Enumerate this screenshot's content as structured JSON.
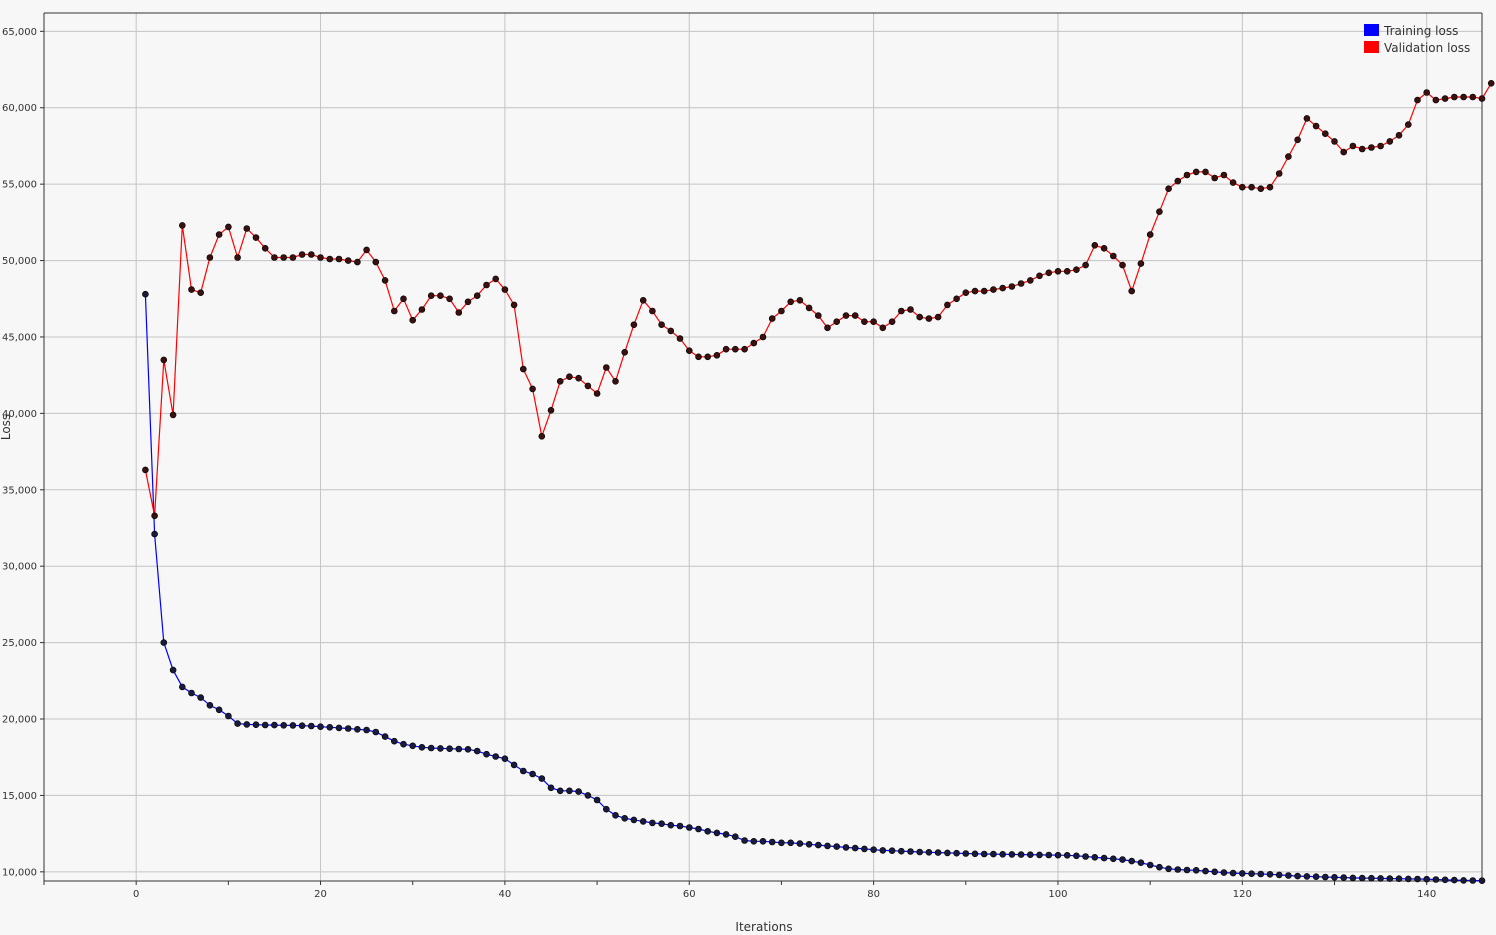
{
  "chart_data": {
    "type": "line",
    "title": "",
    "xlabel": "Iterations",
    "ylabel": "Loss",
    "xlim": [
      -10,
      146
    ],
    "ylim": [
      9400,
      66200
    ],
    "x_ticks": [
      0,
      20,
      40,
      60,
      80,
      100,
      120,
      140
    ],
    "x_tick_labels": [
      "0",
      "20",
      "40",
      "60",
      "80",
      "100",
      "120",
      "140"
    ],
    "y_ticks": [
      10000,
      15000,
      20000,
      25000,
      30000,
      35000,
      40000,
      45000,
      50000,
      55000,
      60000,
      65000
    ],
    "y_tick_labels": [
      "10,000",
      "15,000",
      "20,000",
      "25,000",
      "30,000",
      "35,000",
      "40,000",
      "45,000",
      "50,000",
      "55,000",
      "60,000",
      "65,000"
    ],
    "grid": true,
    "legend_position": "top-right",
    "series": [
      {
        "name": "Training loss",
        "color": "#0000ff",
        "x_start": 1,
        "values": [
          47800,
          32100,
          25000,
          23200,
          22100,
          21700,
          21400,
          20900,
          20600,
          20200,
          19700,
          19650,
          19630,
          19610,
          19600,
          19590,
          19580,
          19560,
          19540,
          19500,
          19460,
          19420,
          19380,
          19330,
          19280,
          19150,
          18850,
          18550,
          18350,
          18250,
          18150,
          18100,
          18080,
          18060,
          18040,
          18020,
          17900,
          17700,
          17550,
          17400,
          17000,
          16600,
          16400,
          16100,
          15500,
          15300,
          15300,
          15250,
          15000,
          14700,
          14100,
          13700,
          13500,
          13400,
          13300,
          13200,
          13150,
          13050,
          13000,
          12900,
          12800,
          12650,
          12550,
          12450,
          12300,
          12050,
          12000,
          12000,
          11950,
          11900,
          11900,
          11850,
          11800,
          11750,
          11700,
          11650,
          11600,
          11550,
          11500,
          11450,
          11400,
          11380,
          11350,
          11330,
          11300,
          11280,
          11260,
          11240,
          11220,
          11200,
          11180,
          11170,
          11160,
          11150,
          11140,
          11130,
          11120,
          11110,
          11100,
          11090,
          11080,
          11050,
          11000,
          10950,
          10900,
          10850,
          10800,
          10700,
          10600,
          10450,
          10300,
          10200,
          10150,
          10120,
          10100,
          10050,
          10000,
          9950,
          9920,
          9900,
          9880,
          9860,
          9840,
          9800,
          9760,
          9720,
          9700,
          9680,
          9660,
          9640,
          9620,
          9600,
          9590,
          9580,
          9570,
          9560,
          9550,
          9540,
          9530,
          9520,
          9500,
          9480,
          9460,
          9440,
          9430,
          9420
        ]
      },
      {
        "name": "Validation loss",
        "color": "#ff0000",
        "x_start": 1,
        "values": [
          36300,
          33300,
          43500,
          39900,
          52300,
          48100,
          47900,
          50200,
          51700,
          52200,
          50200,
          52100,
          51500,
          50800,
          50200,
          50200,
          50200,
          50400,
          50400,
          50200,
          50100,
          50100,
          50000,
          49900,
          50700,
          49900,
          48700,
          46700,
          47500,
          46100,
          46800,
          47700,
          47700,
          47500,
          46600,
          47300,
          47700,
          48400,
          48800,
          48100,
          47100,
          42900,
          41600,
          38500,
          40200,
          42100,
          42400,
          42300,
          41800,
          41300,
          43000,
          42100,
          44000,
          45800,
          47400,
          46700,
          45800,
          45400,
          44900,
          44100,
          43700,
          43700,
          43800,
          44200,
          44200,
          44200,
          44600,
          45000,
          46200,
          46700,
          47300,
          47400,
          46900,
          46400,
          45600,
          46000,
          46400,
          46400,
          46000,
          46000,
          45600,
          46000,
          46700,
          46800,
          46300,
          46200,
          46300,
          47100,
          47500,
          47900,
          48000,
          48000,
          48100,
          48200,
          48300,
          48500,
          48700,
          49000,
          49200,
          49300,
          49300,
          49400,
          49700,
          51000,
          50800,
          50300,
          49700,
          48000,
          49800,
          51700,
          53200,
          54700,
          55200,
          55600,
          55800,
          55800,
          55400,
          55600,
          55100,
          54800,
          54800,
          54700,
          54800,
          55700,
          56800,
          57900,
          59300,
          58800,
          58300,
          57800,
          57100,
          57500,
          57300,
          57400,
          57500,
          57800,
          58200,
          58900,
          60500,
          61000,
          60500,
          60600,
          60700,
          60700,
          60700,
          60600,
          61600
        ]
      }
    ]
  }
}
